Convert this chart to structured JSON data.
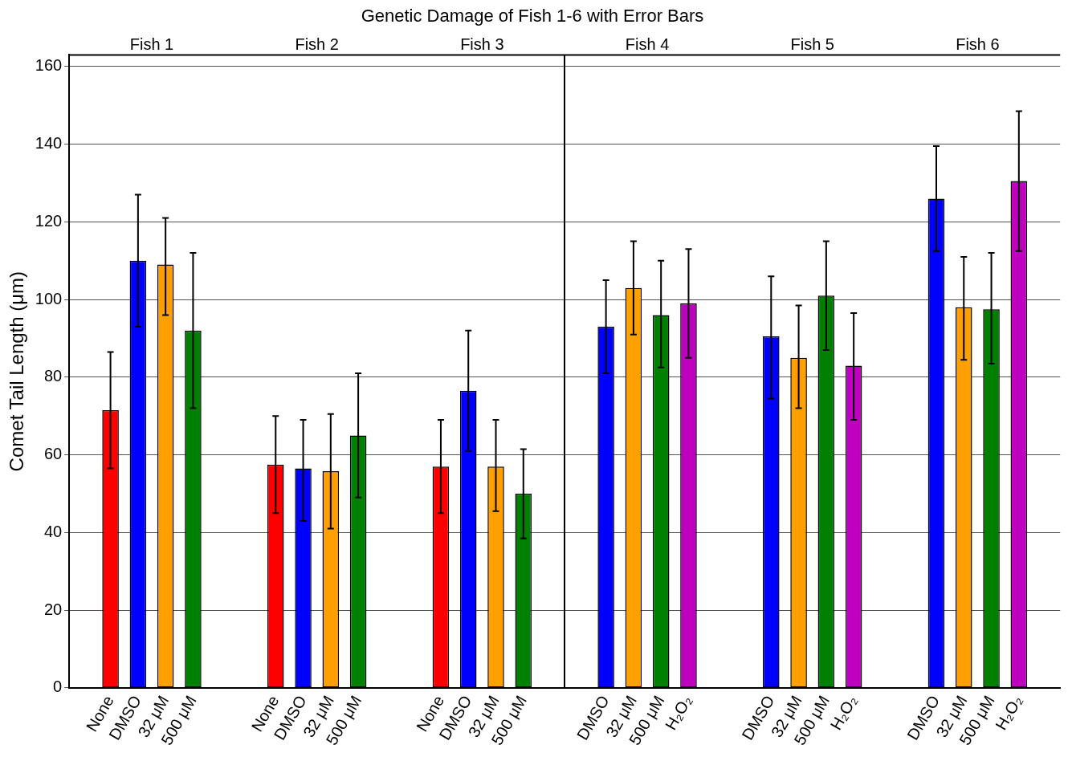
{
  "chart_data": {
    "type": "bar",
    "title": "Genetic Damage of Fish 1-6 with Error Bars",
    "ylabel": "Comet Tail Length (μm)",
    "categories": [
      null,
      "None",
      "DMSO",
      "32 μM",
      "500 μM",
      null,
      null,
      "None",
      "DMSO",
      "32 μM",
      "500 μM",
      null,
      null,
      "None",
      "DMSO",
      "32 μM",
      "500 μM",
      null,
      null,
      "DMSO",
      "32 μM",
      "500 μM",
      "H₂O₂",
      null,
      null,
      "DMSO",
      "32 μM",
      "500 μM",
      "H₂O₂",
      null,
      null,
      "DMSO",
      "32 μM",
      "500 μM",
      "H₂O₂",
      null
    ],
    "values": [
      null,
      71.5,
      110,
      109,
      92,
      null,
      null,
      57.5,
      56.5,
      55.8,
      65,
      null,
      null,
      57,
      76.5,
      57,
      50,
      null,
      null,
      93,
      103,
      96,
      99,
      null,
      null,
      90.5,
      85,
      101,
      83,
      null,
      null,
      126,
      98,
      97.5,
      130.5,
      null
    ],
    "errors": [
      null,
      [
        56.5,
        86.5
      ],
      [
        93,
        127
      ],
      [
        96,
        121
      ],
      [
        72,
        112
      ],
      null,
      null,
      [
        45,
        70
      ],
      [
        43,
        69
      ],
      [
        41,
        70.5
      ],
      [
        49,
        81
      ],
      null,
      null,
      [
        45,
        69
      ],
      [
        61,
        92
      ],
      [
        45.5,
        69
      ],
      [
        38.5,
        61.5
      ],
      null,
      null,
      [
        81,
        105
      ],
      [
        91,
        115
      ],
      [
        82.5,
        110
      ],
      [
        85,
        113
      ],
      null,
      null,
      [
        74.5,
        106
      ],
      [
        72,
        98.5
      ],
      [
        87,
        115
      ],
      [
        69,
        96.5
      ],
      null,
      null,
      [
        112.5,
        139.5
      ],
      [
        84.5,
        111
      ],
      [
        83.5,
        112
      ],
      [
        112.5,
        148.5
      ],
      null
    ],
    "colors": [
      null,
      "#ff0000",
      "#0000ff",
      "#ffa000",
      "#008000",
      null,
      null,
      "#ff0000",
      "#0000ff",
      "#ffa000",
      "#008000",
      null,
      null,
      "#ff0000",
      "#0000ff",
      "#ffa000",
      "#008000",
      null,
      null,
      "#0000ff",
      "#ffa000",
      "#008000",
      "#c000c0",
      null,
      null,
      "#0000ff",
      "#ffa000",
      "#008000",
      "#c000c0",
      null,
      null,
      "#0000ff",
      "#ffa000",
      "#008000",
      "#c000c0",
      null
    ],
    "annotations": [
      "Fish 1",
      "Fish 2",
      "Fish 3",
      "Fish 4",
      "Fish 5",
      "Fish 6"
    ],
    "ylim": [
      0,
      163
    ],
    "yticks": [
      0,
      20,
      40,
      60,
      80,
      100,
      120,
      140,
      160
    ],
    "grid": "y",
    "legend": false
  }
}
